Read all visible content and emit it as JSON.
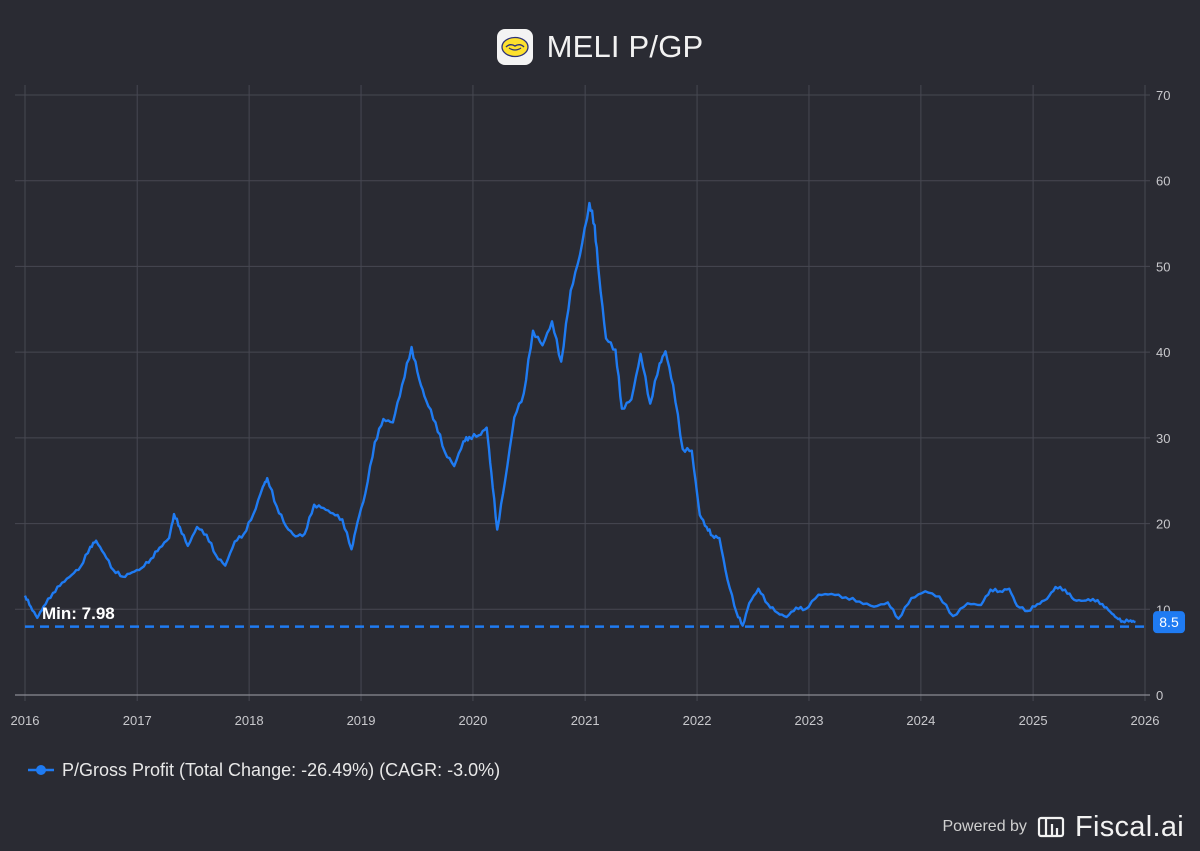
{
  "header": {
    "title": "MELI P/GP",
    "logo_icon": "mercado-libre-handshake-icon"
  },
  "chart_data": {
    "type": "line",
    "title": "MELI P/GP",
    "xlabel": "",
    "ylabel": "",
    "xlim": [
      "2016-01-01",
      "2026-01-01"
    ],
    "ylim": [
      0,
      70
    ],
    "x_ticks": [
      "2016",
      "2017",
      "2018",
      "2019",
      "2020",
      "2021",
      "2022",
      "2023",
      "2024",
      "2025",
      "2026"
    ],
    "y_ticks": [
      0,
      10,
      20,
      30,
      40,
      50,
      60,
      70
    ],
    "grid": true,
    "legend_position": "bottom-left",
    "series": [
      {
        "name": "P/Gross Profit (Total Change: -26.49%) (CAGR: -3.0%)",
        "color": "#1f7bf2",
        "points": [
          [
            "2016-01-01",
            11.6
          ],
          [
            "2016-01-20",
            10.3
          ],
          [
            "2016-02-10",
            9.0
          ],
          [
            "2016-03-01",
            10.3
          ],
          [
            "2016-04-01",
            11.9
          ],
          [
            "2016-05-01",
            13.1
          ],
          [
            "2016-06-01",
            14.0
          ],
          [
            "2016-07-01",
            15.0
          ],
          [
            "2016-08-01",
            17.3
          ],
          [
            "2016-08-20",
            18.0
          ],
          [
            "2016-09-15",
            16.5
          ],
          [
            "2016-10-15",
            14.6
          ],
          [
            "2016-11-15",
            13.8
          ],
          [
            "2016-12-15",
            14.3
          ],
          [
            "2017-01-15",
            14.8
          ],
          [
            "2017-02-15",
            15.9
          ],
          [
            "2017-03-15",
            17.2
          ],
          [
            "2017-04-15",
            18.3
          ],
          [
            "2017-05-01",
            21.1
          ],
          [
            "2017-05-20",
            19.6
          ],
          [
            "2017-06-15",
            17.4
          ],
          [
            "2017-07-15",
            19.6
          ],
          [
            "2017-08-15",
            18.7
          ],
          [
            "2017-09-15",
            16.3
          ],
          [
            "2017-10-15",
            15.1
          ],
          [
            "2017-11-15",
            17.9
          ],
          [
            "2017-12-15",
            18.8
          ],
          [
            "2018-01-15",
            21.1
          ],
          [
            "2018-02-15",
            24.3
          ],
          [
            "2018-03-01",
            25.3
          ],
          [
            "2018-04-01",
            22.0
          ],
          [
            "2018-05-01",
            19.7
          ],
          [
            "2018-06-01",
            18.5
          ],
          [
            "2018-07-01",
            18.8
          ],
          [
            "2018-08-01",
            22.2
          ],
          [
            "2018-09-01",
            21.8
          ],
          [
            "2018-10-01",
            21.2
          ],
          [
            "2018-11-01",
            20.5
          ],
          [
            "2018-12-01",
            17.0
          ],
          [
            "2018-12-20",
            20.1
          ],
          [
            "2019-01-15",
            23.5
          ],
          [
            "2019-02-15",
            29.5
          ],
          [
            "2019-03-15",
            32.2
          ],
          [
            "2019-04-15",
            31.8
          ],
          [
            "2019-05-15",
            36.2
          ],
          [
            "2019-06-15",
            40.6
          ],
          [
            "2019-07-10",
            36.8
          ],
          [
            "2019-08-01",
            34.4
          ],
          [
            "2019-09-01",
            31.8
          ],
          [
            "2019-10-01",
            28.4
          ],
          [
            "2019-11-01",
            26.7
          ],
          [
            "2019-12-01",
            29.6
          ],
          [
            "2019-12-20",
            30.1
          ],
          [
            "2020-01-20",
            30.3
          ],
          [
            "2020-02-15",
            31.2
          ],
          [
            "2020-03-01",
            26.0
          ],
          [
            "2020-03-20",
            19.3
          ],
          [
            "2020-04-15",
            25.0
          ],
          [
            "2020-05-15",
            32.4
          ],
          [
            "2020-06-15",
            35.2
          ],
          [
            "2020-07-15",
            42.5
          ],
          [
            "2020-08-15",
            40.8
          ],
          [
            "2020-09-15",
            43.6
          ],
          [
            "2020-10-15",
            38.9
          ],
          [
            "2020-11-15",
            47.2
          ],
          [
            "2020-12-15",
            51.3
          ],
          [
            "2021-01-15",
            57.4
          ],
          [
            "2021-02-01",
            54.8
          ],
          [
            "2021-02-15",
            49.0
          ],
          [
            "2021-03-10",
            41.6
          ],
          [
            "2021-04-10",
            40.3
          ],
          [
            "2021-05-01",
            33.4
          ],
          [
            "2021-06-01",
            34.5
          ],
          [
            "2021-07-01",
            39.8
          ],
          [
            "2021-08-01",
            34.0
          ],
          [
            "2021-09-01",
            38.7
          ],
          [
            "2021-09-20",
            40.1
          ],
          [
            "2021-10-15",
            36.2
          ],
          [
            "2021-11-15",
            28.7
          ],
          [
            "2021-12-15",
            28.5
          ],
          [
            "2022-01-10",
            21.0
          ],
          [
            "2022-02-01",
            19.6
          ],
          [
            "2022-02-20",
            18.6
          ],
          [
            "2022-03-15",
            18.3
          ],
          [
            "2022-04-10",
            13.5
          ],
          [
            "2022-05-10",
            9.6
          ],
          [
            "2022-05-30",
            8.1
          ],
          [
            "2022-06-20",
            10.7
          ],
          [
            "2022-07-20",
            12.4
          ],
          [
            "2022-08-20",
            10.6
          ],
          [
            "2022-09-20",
            9.6
          ],
          [
            "2022-10-20",
            9.1
          ],
          [
            "2022-11-20",
            10.2
          ],
          [
            "2022-12-20",
            10.0
          ],
          [
            "2023-02-01",
            11.7
          ],
          [
            "2023-03-15",
            11.8
          ],
          [
            "2023-05-01",
            11.4
          ],
          [
            "2023-06-15",
            10.9
          ],
          [
            "2023-08-01",
            10.3
          ],
          [
            "2023-09-15",
            10.8
          ],
          [
            "2023-10-20",
            8.9
          ],
          [
            "2023-12-01",
            11.3
          ],
          [
            "2024-01-15",
            12.1
          ],
          [
            "2024-03-01",
            11.5
          ],
          [
            "2024-04-15",
            9.2
          ],
          [
            "2024-06-01",
            10.7
          ],
          [
            "2024-07-15",
            10.5
          ],
          [
            "2024-08-15",
            12.3
          ],
          [
            "2024-09-15",
            12.1
          ],
          [
            "2024-10-15",
            12.4
          ],
          [
            "2024-11-10",
            10.4
          ],
          [
            "2024-12-15",
            9.8
          ],
          [
            "2025-01-15",
            10.6
          ],
          [
            "2025-02-15",
            11.2
          ],
          [
            "2025-03-15",
            12.6
          ],
          [
            "2025-04-15",
            12.3
          ],
          [
            "2025-05-15",
            11.1
          ],
          [
            "2025-06-15",
            11.0
          ],
          [
            "2025-07-15",
            11.2
          ],
          [
            "2025-08-15",
            10.6
          ],
          [
            "2025-09-10",
            9.7
          ],
          [
            "2025-10-01",
            9.0
          ],
          [
            "2025-10-20",
            8.6
          ],
          [
            "2025-11-15",
            8.7
          ],
          [
            "2025-12-01",
            8.5
          ]
        ]
      }
    ],
    "annotations": {
      "min_label": "Min: 7.98",
      "min_value": 7.98,
      "last_value_label": "8.5",
      "last_value": 8.5
    }
  },
  "legend": {
    "label": "P/Gross Profit (Total Change: -26.49%) (CAGR: -3.0%)",
    "marker_icon": "legend-line-dot-icon"
  },
  "footer": {
    "powered_by": "Powered by",
    "brand": "Fiscal.ai",
    "brand_icon": "fiscal-ai-logo-icon"
  },
  "colors": {
    "background": "#2a2b33",
    "series": "#1f7bf2",
    "grid": "#474852",
    "axis_text": "#c8c8cc"
  }
}
